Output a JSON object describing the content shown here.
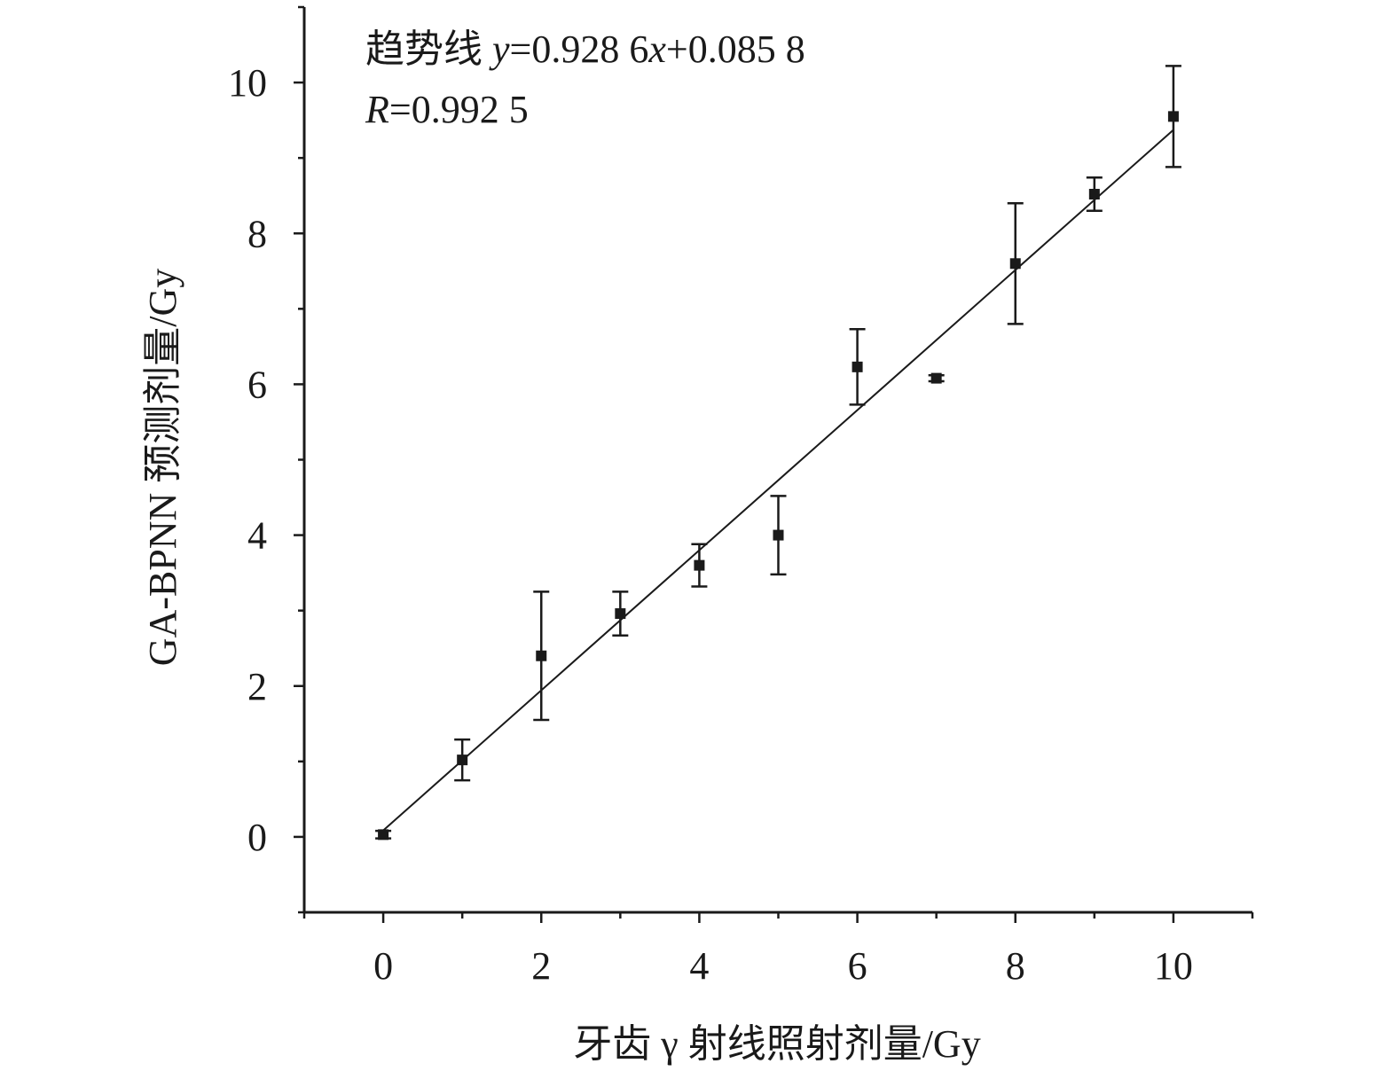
{
  "chart_data": {
    "type": "scatter",
    "xlabel": "牙齿 γ 射线照射剂量/Gy",
    "ylabel": "GA-BPNN 预测剂量/Gy",
    "xlim": [
      -1,
      11
    ],
    "ylim": [
      -1,
      11
    ],
    "xticks": [
      0,
      2,
      4,
      6,
      8,
      10
    ],
    "yticks": [
      0,
      2,
      4,
      6,
      8,
      10
    ],
    "grid": false,
    "series": [
      {
        "x": [
          0,
          1,
          2,
          3,
          4,
          5,
          6,
          7,
          8,
          9,
          10
        ],
        "y": [
          0.03,
          1.02,
          2.4,
          2.96,
          3.6,
          4.0,
          6.23,
          6.08,
          7.6,
          8.52,
          9.55
        ],
        "error": [
          0.05,
          0.27,
          0.85,
          0.29,
          0.28,
          0.52,
          0.5,
          0.04,
          0.8,
          0.22,
          0.67
        ]
      }
    ],
    "trendline": {
      "slope": 0.9286,
      "intercept": 0.0858
    },
    "annotations": {
      "equation_prefix": "趋势线 ",
      "equation_y": "y",
      "equation_mid": "=0.928 6",
      "equation_x": "x",
      "equation_suffix": "+0.085 8",
      "r_symbol": "R",
      "r_value": "=0.992 5"
    },
    "colors": {
      "marker": "#1a1a1a",
      "line": "#1a1a1a",
      "axis": "#1a1a1a"
    }
  }
}
